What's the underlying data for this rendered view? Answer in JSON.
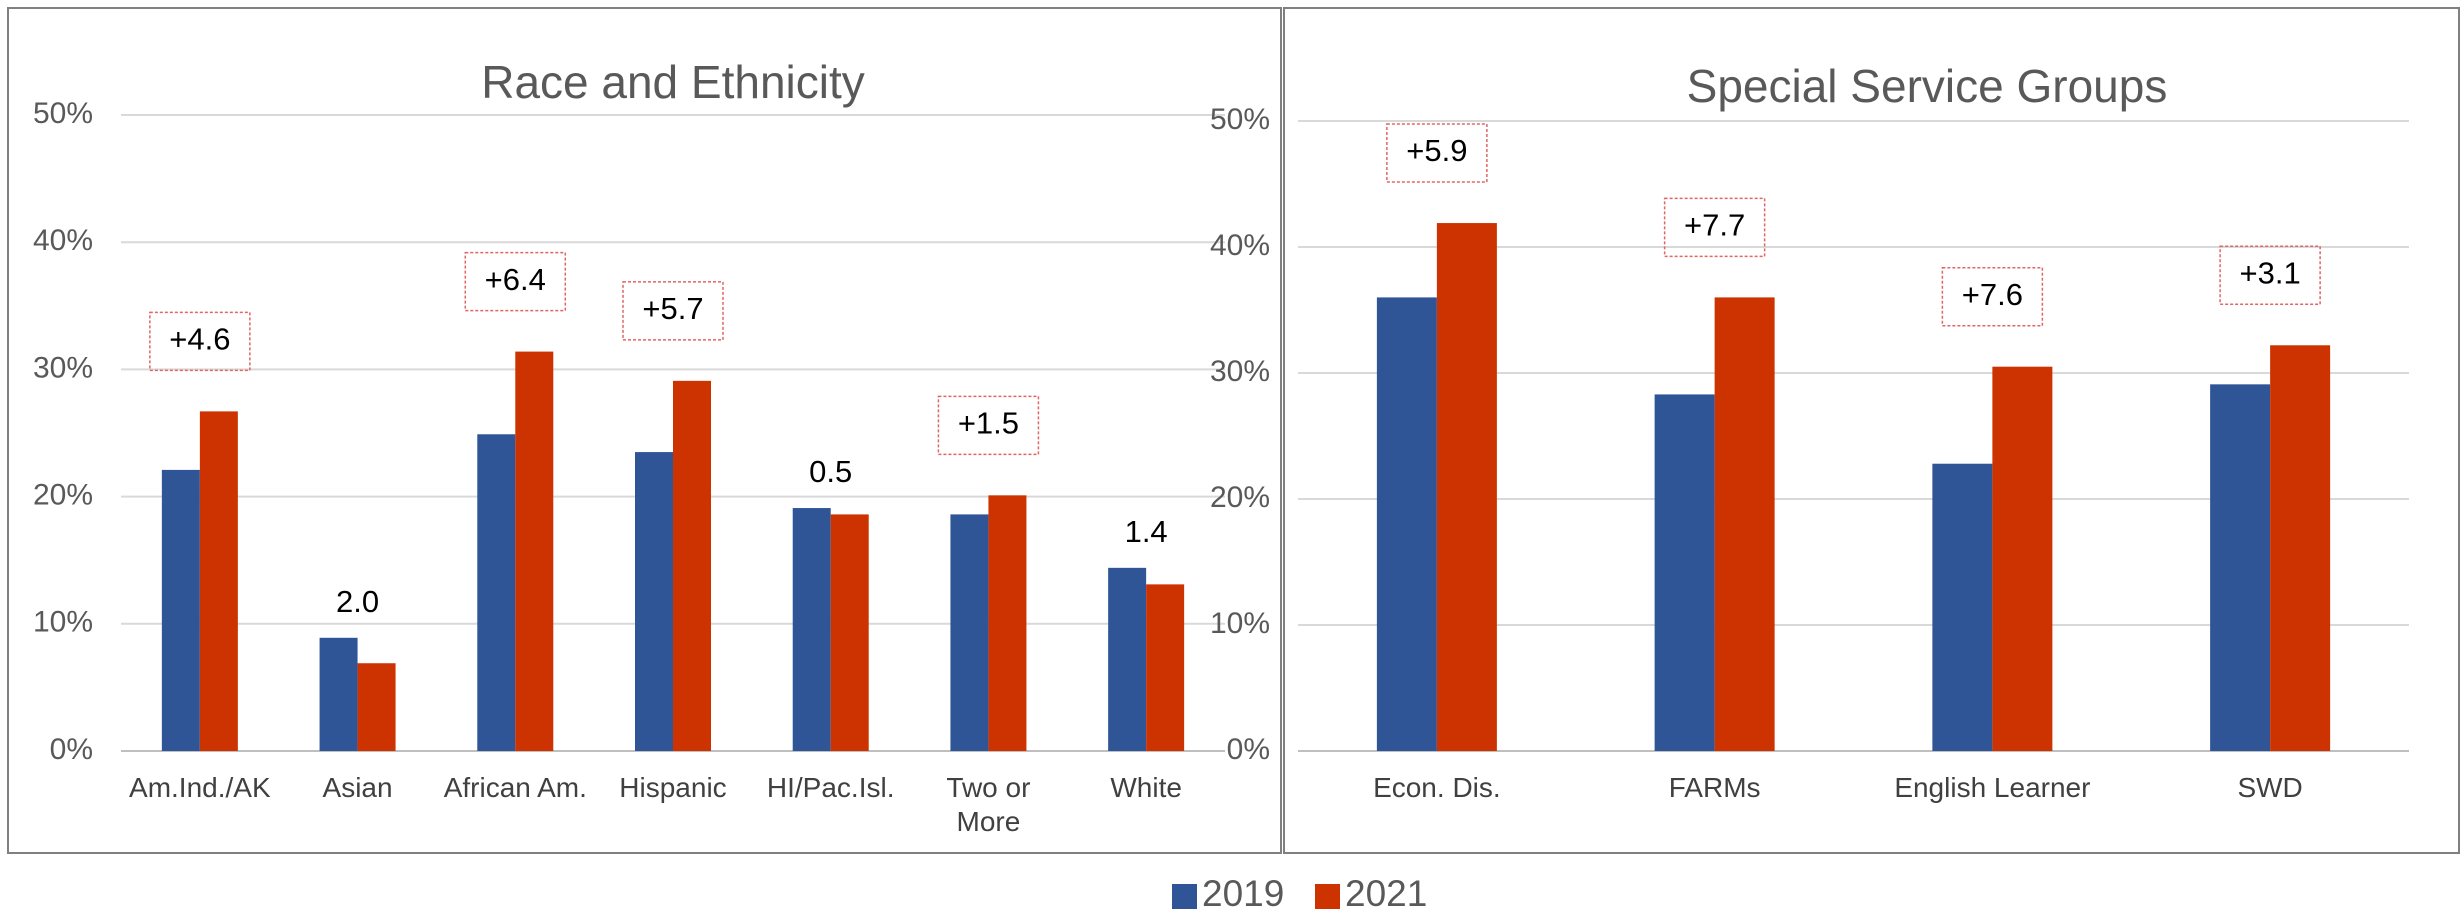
{
  "chart_data": [
    {
      "type": "bar",
      "title": "Race and Ethnicity",
      "categories": [
        "Am.Ind./AK",
        "Asian",
        "African Am.",
        "Hispanic",
        "HI/Pac.Isl.",
        "Two or\nMore",
        "White"
      ],
      "series": [
        {
          "name": "2019",
          "color": "#2f5597",
          "values": [
            22.1,
            8.9,
            24.9,
            23.5,
            19.1,
            18.6,
            14.4
          ]
        },
        {
          "name": "2021",
          "color": "#cc3300",
          "values": [
            26.7,
            6.9,
            31.4,
            29.1,
            18.6,
            20.1,
            13.1
          ]
        }
      ],
      "annotations": [
        "+4.6",
        "2.0",
        "+6.4",
        "+5.7",
        "0.5",
        "+1.5",
        "1.4"
      ],
      "annotation_boxed": [
        true,
        false,
        true,
        true,
        false,
        true,
        false
      ],
      "ylim": [
        0,
        50
      ],
      "yticks": [
        {
          "value": 0,
          "label": "0%"
        },
        {
          "value": 10,
          "label": "10%"
        },
        {
          "value": 20,
          "label": "20%"
        },
        {
          "value": 30,
          "label": "30%"
        },
        {
          "value": 40,
          "label": "40%"
        },
        {
          "value": 50,
          "label": "50%"
        }
      ],
      "grid": true
    },
    {
      "type": "bar",
      "title": "Special Service Groups",
      "categories": [
        "Econ. Dis.",
        "FARMs",
        "English Learner",
        "SWD"
      ],
      "series": [
        {
          "color": "#2f5597",
          "values": [
            36.0,
            28.3,
            22.8,
            29.1
          ]
        },
        {
          "color": "#cc3300",
          "values": [
            41.9,
            36.0,
            30.5,
            32.2
          ]
        }
      ],
      "annotations": [
        "+5.9",
        "+7.7",
        "+7.6",
        "+3.1"
      ],
      "annotation_boxed": [
        true,
        true,
        true,
        true
      ],
      "ylim": [
        0,
        50
      ],
      "yticks": [
        {
          "value": 0,
          "label": "0%"
        },
        {
          "value": 10,
          "label": "10%"
        },
        {
          "value": 20,
          "label": "20%"
        },
        {
          "value": 30,
          "label": "30%"
        },
        {
          "value": 40,
          "label": "40%"
        },
        {
          "value": 50,
          "label": "50%"
        }
      ],
      "grid": true
    }
  ]
}
